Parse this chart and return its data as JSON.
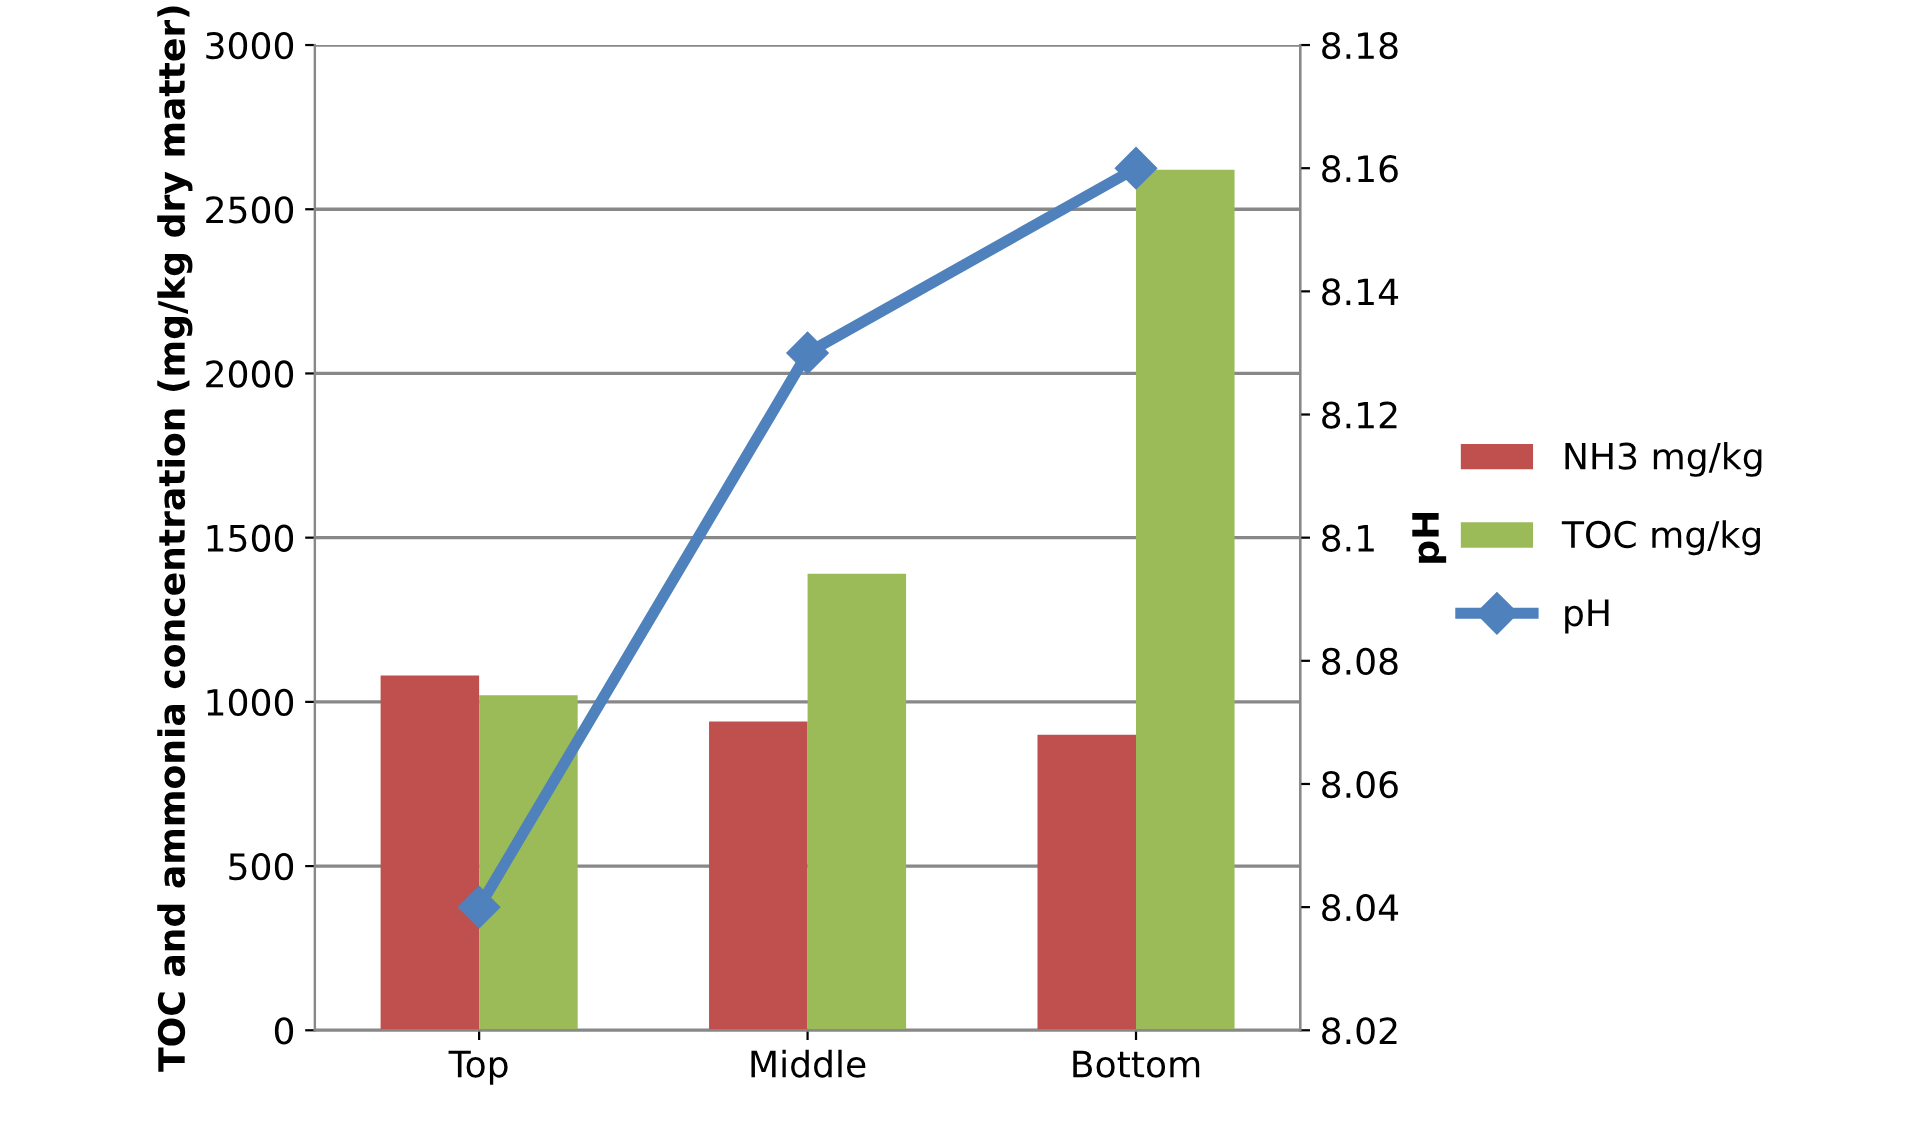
{
  "chart_data": {
    "type": "bar",
    "categories": [
      "Top",
      "Middle",
      "Bottom"
    ],
    "ylabel": "TOC and ammonia concentration (mg/kg dry matter)",
    "y2label": "pH",
    "ylim": [
      0,
      3000
    ],
    "yticks": [
      0,
      500,
      1000,
      1500,
      2000,
      2500,
      3000
    ],
    "y2lim": [
      8.02,
      8.18
    ],
    "y2ticks": [
      {
        "value": 8.02,
        "label": "8.02"
      },
      {
        "value": 8.04,
        "label": "8.04"
      },
      {
        "value": 8.06,
        "label": "8.06"
      },
      {
        "value": 8.08,
        "label": "8.08"
      },
      {
        "value": 8.1,
        "label": "8.1"
      },
      {
        "value": 8.12,
        "label": "8.12"
      },
      {
        "value": 8.14,
        "label": "8.14"
      },
      {
        "value": 8.16,
        "label": "8.16"
      },
      {
        "value": 8.18,
        "label": "8.18"
      }
    ],
    "grid": "y",
    "legend": "right",
    "series": [
      {
        "name": "NH3 mg/kg",
        "color": "#c0504d",
        "values": [
          1080,
          940,
          900
        ]
      },
      {
        "name": "TOC mg/kg",
        "color": "#9bbb59",
        "values": [
          1020,
          1390,
          2620
        ]
      },
      {
        "name": "pH",
        "type": "line",
        "axis": "y2",
        "color": "#4f81bd",
        "marker": "diamond",
        "values": [
          8.04,
          8.13,
          8.16
        ]
      }
    ]
  }
}
